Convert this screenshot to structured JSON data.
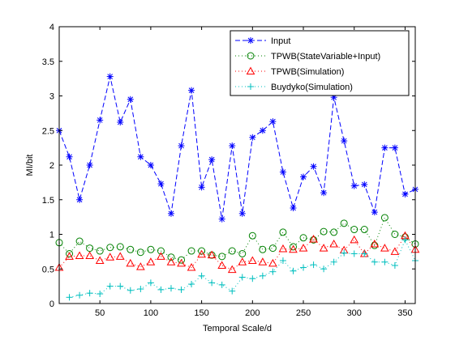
{
  "chart_data": {
    "type": "line",
    "title": "",
    "xlabel": "Temporal Scale/d",
    "ylabel": "MI/bit",
    "xlim": [
      10,
      360
    ],
    "ylim": [
      0,
      4
    ],
    "xticks": [
      50,
      100,
      150,
      200,
      250,
      300,
      350
    ],
    "yticks": [
      0,
      0.5,
      1,
      1.5,
      2,
      2.5,
      3,
      3.5,
      4
    ],
    "ytick_labels": [
      "0",
      "0.5",
      "1",
      "1.5",
      "2",
      "2.5",
      "3",
      "3.5",
      "4"
    ],
    "grid": false,
    "legend_position": "top-right",
    "x": [
      10,
      20,
      30,
      40,
      50,
      60,
      70,
      80,
      90,
      100,
      110,
      120,
      130,
      140,
      150,
      160,
      170,
      180,
      190,
      200,
      210,
      220,
      230,
      240,
      250,
      260,
      270,
      280,
      290,
      300,
      310,
      320,
      330,
      340,
      350,
      360
    ],
    "series": [
      {
        "name": "Input",
        "color": "#0000ff",
        "line": "dashed",
        "marker": "star",
        "values": [
          2.5,
          2.12,
          1.5,
          2.0,
          2.65,
          3.28,
          2.62,
          2.95,
          2.12,
          2.0,
          1.73,
          1.3,
          2.28,
          3.08,
          1.68,
          2.08,
          1.22,
          2.28,
          1.3,
          2.4,
          2.5,
          2.63,
          1.9,
          1.38,
          1.83,
          1.98,
          1.6,
          2.98,
          2.35,
          1.7,
          1.72,
          1.32,
          2.25,
          2.25,
          1.58,
          1.65
        ]
      },
      {
        "name": "TPWB(StateVariable+Input)",
        "color": "#008000",
        "line": "dotted",
        "marker": "circle",
        "values": [
          0.88,
          0.72,
          0.9,
          0.8,
          0.76,
          0.81,
          0.82,
          0.78,
          0.74,
          0.78,
          0.76,
          0.67,
          0.63,
          0.76,
          0.76,
          0.7,
          0.68,
          0.76,
          0.72,
          0.98,
          0.78,
          0.8,
          1.03,
          0.82,
          0.95,
          0.92,
          1.04,
          1.03,
          1.16,
          1.07,
          1.07,
          0.84,
          1.24,
          1.0,
          0.96,
          0.86
        ]
      },
      {
        "name": "TPWB(Simulation)",
        "color": "#ff0000",
        "line": "dotted",
        "marker": "triangle",
        "values": [
          0.52,
          0.68,
          0.69,
          0.69,
          0.62,
          0.67,
          0.68,
          0.58,
          0.53,
          0.6,
          0.68,
          0.6,
          0.58,
          0.52,
          0.71,
          0.7,
          0.55,
          0.49,
          0.6,
          0.62,
          0.6,
          0.58,
          0.79,
          0.78,
          0.8,
          0.93,
          0.8,
          0.86,
          0.77,
          0.92,
          0.72,
          0.86,
          0.8,
          0.75,
          0.98,
          0.78
        ]
      },
      {
        "name": "Buydyko(Simulation)",
        "color": "#00bfbf",
        "line": "dotted",
        "marker": "plus",
        "values": [
          null,
          0.09,
          0.12,
          0.15,
          0.14,
          0.25,
          0.25,
          0.19,
          0.21,
          0.3,
          0.2,
          0.22,
          0.2,
          0.28,
          0.4,
          0.3,
          0.27,
          0.18,
          0.38,
          0.36,
          0.4,
          0.46,
          0.62,
          0.47,
          0.52,
          0.56,
          0.5,
          0.6,
          0.73,
          0.72,
          0.72,
          0.6,
          0.6,
          0.55,
          0.92,
          0.62
        ]
      }
    ]
  }
}
